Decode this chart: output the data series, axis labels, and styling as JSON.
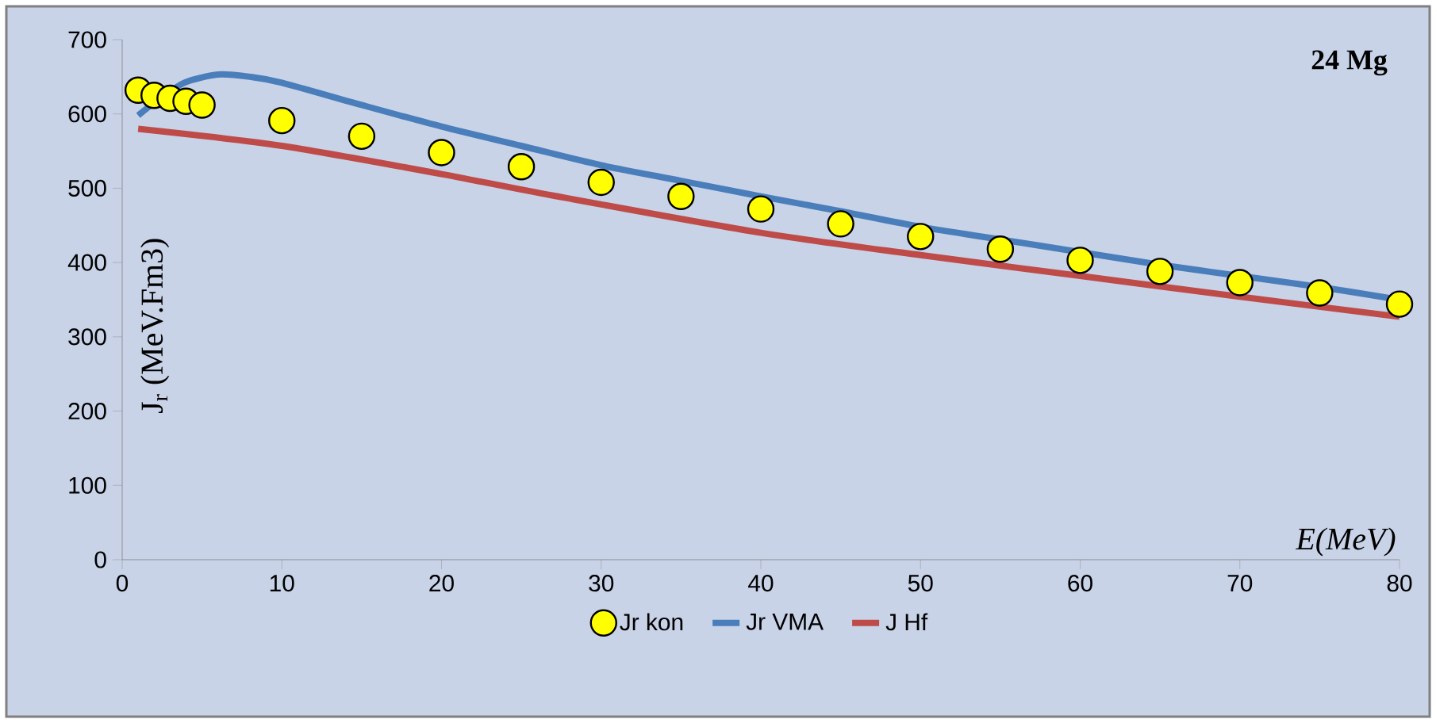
{
  "chart_data": {
    "type": "line",
    "xlabel": "E(MeV)",
    "ylabel": "J$_{r}$ (MeV.Fm3)",
    "annotations": [
      "24 Mg"
    ],
    "xlim": [
      0,
      80
    ],
    "xticks": [
      0,
      10,
      20,
      30,
      40,
      50,
      60,
      70,
      80
    ],
    "ylim": [
      0,
      700
    ],
    "yticks": [
      0,
      100,
      200,
      300,
      400,
      500,
      600,
      700
    ],
    "legend": "bottom",
    "grid": false,
    "series": [
      {
        "name": "Jr kon",
        "type": "scatter",
        "color": "#ffff00",
        "x": [
          1,
          2,
          3,
          4,
          5,
          10,
          15,
          20,
          25,
          30,
          35,
          40,
          45,
          50,
          55,
          60,
          65,
          70,
          75,
          80
        ],
        "values": [
          632,
          625,
          621,
          617,
          612,
          591,
          570,
          548,
          529,
          508,
          489,
          472,
          452,
          435,
          418,
          403,
          388,
          373,
          359,
          344
        ]
      },
      {
        "name": "Jr VMA",
        "color": "#4a7ebb",
        "x": [
          1,
          2,
          3,
          4,
          6,
          8,
          10,
          15,
          20,
          25,
          30,
          35,
          40,
          45,
          50,
          55,
          60,
          65,
          70,
          75,
          80
        ],
        "values": [
          598,
          615,
          630,
          643,
          653,
          650,
          642,
          612,
          583,
          557,
          531,
          510,
          489,
          469,
          448,
          431,
          414,
          397,
          382,
          367,
          350
        ]
      },
      {
        "name": "J Hf",
        "color": "#be4b48",
        "x": [
          1,
          10,
          20,
          27,
          40,
          50,
          60,
          70,
          80
        ],
        "values": [
          580,
          557,
          519,
          490,
          440,
          410,
          382,
          354,
          327
        ]
      }
    ]
  }
}
